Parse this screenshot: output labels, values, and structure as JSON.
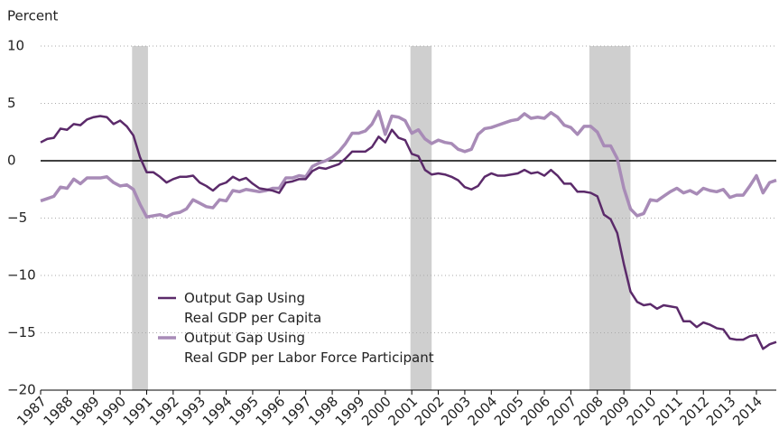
{
  "chart_data": {
    "type": "line",
    "y_label": "Percent",
    "x": [
      1987,
      1987.25,
      1987.5,
      1987.75,
      1988,
      1988.25,
      1988.5,
      1988.75,
      1989,
      1989.25,
      1989.5,
      1989.75,
      1990,
      1990.25,
      1990.5,
      1990.75,
      1991,
      1991.25,
      1991.5,
      1991.75,
      1992,
      1992.25,
      1992.5,
      1992.75,
      1993,
      1993.25,
      1993.5,
      1993.75,
      1994,
      1994.25,
      1994.5,
      1994.75,
      1995,
      1995.25,
      1995.5,
      1995.75,
      1996,
      1996.25,
      1996.5,
      1996.75,
      1997,
      1997.25,
      1997.5,
      1997.75,
      1998,
      1998.25,
      1998.5,
      1998.75,
      1999,
      1999.25,
      1999.5,
      1999.75,
      2000,
      2000.25,
      2000.5,
      2000.75,
      2001,
      2001.25,
      2001.5,
      2001.75,
      2002,
      2002.25,
      2002.5,
      2002.75,
      2003,
      2003.25,
      2003.5,
      2003.75,
      2004,
      2004.25,
      2004.5,
      2004.75,
      2005,
      2005.25,
      2005.5,
      2005.75,
      2006,
      2006.25,
      2006.5,
      2006.75,
      2007,
      2007.25,
      2007.5,
      2007.75,
      2008,
      2008.25,
      2008.5,
      2008.75,
      2009,
      2009.25,
      2009.5,
      2009.75,
      2010,
      2010.25,
      2010.5,
      2010.75,
      2011,
      2011.25,
      2011.5,
      2011.75,
      2012,
      2012.25,
      2012.5,
      2012.75,
      2013,
      2013.25,
      2013.5,
      2013.75,
      2014,
      2014.25,
      2014.5,
      2014.75
    ],
    "series": [
      {
        "name": "Output Gap Using\nReal GDP per Capita",
        "color": "#5b2a6a",
        "values": [
          1.6,
          1.9,
          2.0,
          2.8,
          2.7,
          3.2,
          3.1,
          3.6,
          3.8,
          3.9,
          3.8,
          3.2,
          3.5,
          3.0,
          2.2,
          0.3,
          -1.0,
          -1.0,
          -1.4,
          -1.9,
          -1.6,
          -1.4,
          -1.4,
          -1.3,
          -1.9,
          -2.2,
          -2.6,
          -2.1,
          -1.9,
          -1.4,
          -1.7,
          -1.5,
          -2.0,
          -2.4,
          -2.5,
          -2.6,
          -2.8,
          -1.9,
          -1.8,
          -1.6,
          -1.6,
          -0.9,
          -0.6,
          -0.7,
          -0.5,
          -0.3,
          0.2,
          0.8,
          0.8,
          0.8,
          1.2,
          2.1,
          1.6,
          2.7,
          2.0,
          1.8,
          0.6,
          0.4,
          -0.8,
          -1.2,
          -1.1,
          -1.2,
          -1.4,
          -1.7,
          -2.3,
          -2.5,
          -2.2,
          -1.4,
          -1.1,
          -1.3,
          -1.3,
          -1.2,
          -1.1,
          -0.8,
          -1.1,
          -1.0,
          -1.3,
          -0.8,
          -1.3,
          -2.0,
          -2.0,
          -2.7,
          -2.7,
          -2.8,
          -3.1,
          -4.7,
          -5.1,
          -6.3,
          -9.0,
          -11.4,
          -12.3,
          -12.6,
          -12.5,
          -12.9,
          -12.6,
          -12.7,
          -12.8,
          -14.0,
          -14.0,
          -14.5,
          -14.1,
          -14.3,
          -14.6,
          -14.7,
          -15.5,
          -15.6,
          -15.6,
          -15.3,
          -15.2,
          -16.4,
          -16.0,
          -15.8
        ]
      },
      {
        "name": "Output Gap Using\nReal GDP per Labor Force Participant",
        "color": "#a88bb7",
        "values": [
          -3.5,
          -3.3,
          -3.1,
          -2.3,
          -2.4,
          -1.6,
          -2.0,
          -1.5,
          -1.5,
          -1.5,
          -1.4,
          -1.9,
          -2.2,
          -2.1,
          -2.5,
          -3.8,
          -4.9,
          -4.8,
          -4.7,
          -4.9,
          -4.6,
          -4.5,
          -4.2,
          -3.4,
          -3.7,
          -4.0,
          -4.1,
          -3.4,
          -3.5,
          -2.6,
          -2.7,
          -2.5,
          -2.6,
          -2.7,
          -2.6,
          -2.4,
          -2.4,
          -1.5,
          -1.5,
          -1.3,
          -1.4,
          -0.5,
          -0.2,
          0.0,
          0.3,
          0.8,
          1.5,
          2.4,
          2.4,
          2.6,
          3.2,
          4.3,
          2.3,
          3.9,
          3.8,
          3.5,
          2.4,
          2.7,
          1.9,
          1.5,
          1.8,
          1.6,
          1.5,
          1.0,
          0.8,
          1.0,
          2.3,
          2.8,
          2.9,
          3.1,
          3.3,
          3.5,
          3.6,
          4.1,
          3.7,
          3.8,
          3.7,
          4.2,
          3.8,
          3.1,
          2.9,
          2.3,
          3.0,
          3.0,
          2.5,
          1.3,
          1.3,
          0.2,
          -2.4,
          -4.2,
          -4.8,
          -4.6,
          -3.4,
          -3.5,
          -3.1,
          -2.7,
          -2.4,
          -2.8,
          -2.6,
          -2.9,
          -2.4,
          -2.6,
          -2.7,
          -2.5,
          -3.2,
          -3.0,
          -3.0,
          -2.2,
          -1.3,
          -2.8,
          -1.9,
          -1.7
        ]
      }
    ],
    "recessions": [
      {
        "start": 1990.45,
        "end": 1991.05
      },
      {
        "start": 2000.95,
        "end": 2001.75
      },
      {
        "start": 2007.7,
        "end": 2009.25
      }
    ],
    "recession_color": "#cfcfcf",
    "xlim": [
      1987,
      2014.75
    ],
    "xticks": [
      1987,
      1988,
      1989,
      1990,
      1991,
      1992,
      1993,
      1994,
      1995,
      1996,
      1997,
      1998,
      1999,
      2000,
      2001,
      2002,
      2003,
      2004,
      2005,
      2006,
      2007,
      2008,
      2009,
      2010,
      2011,
      2012,
      2013,
      2014
    ],
    "ylim": [
      -20,
      10
    ],
    "yticks": [
      10,
      5,
      0,
      {
        "value": -5,
        "label": "−5"
      },
      {
        "value": -10,
        "label": "−10"
      },
      {
        "value": -15,
        "label": "−15"
      },
      {
        "value": -20,
        "label": "−20"
      }
    ],
    "grid": true,
    "legend": "lower left"
  }
}
